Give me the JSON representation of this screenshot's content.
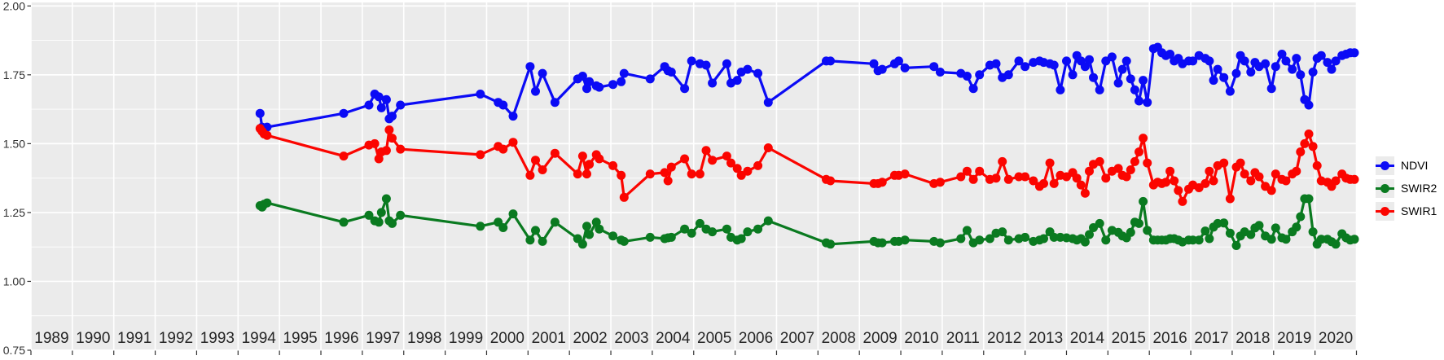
{
  "chart_data": {
    "type": "line",
    "title": "",
    "xlabel": "",
    "ylabel": "",
    "xlim": [
      1988.5,
      2020.5
    ],
    "ylim": [
      0.75,
      2.0
    ],
    "grid": "on",
    "legend_position": "right",
    "panel_bg": "#ebebeb",
    "grid_color": "#ffffff",
    "axis_text_color": "#303030",
    "y_ticks": [
      {
        "value": 2.0,
        "label": "2.00"
      },
      {
        "value": 1.75,
        "label": "1.75"
      },
      {
        "value": 1.5,
        "label": "1.50"
      },
      {
        "value": 1.25,
        "label": "1.25"
      },
      {
        "value": 1.0,
        "label": "1.00"
      },
      {
        "value": 0.75,
        "label": "0.75"
      }
    ],
    "y_minor_ticks": [
      1.875,
      1.625,
      1.375,
      1.125,
      0.875
    ],
    "x_tick_years": [
      1989,
      1990,
      1991,
      1992,
      1993,
      1994,
      1995,
      1996,
      1997,
      1998,
      1999,
      2000,
      2001,
      2002,
      2003,
      2004,
      2005,
      2006,
      2007,
      2008,
      2009,
      2010,
      2011,
      2012,
      2013,
      2014,
      2015,
      2016,
      2017,
      2018,
      2019,
      2020
    ],
    "x": [
      1994.03,
      1994.08,
      1994.13,
      1994.2,
      1996.05,
      1996.66,
      1996.8,
      1996.9,
      1996.96,
      1997.08,
      1997.15,
      1997.22,
      1997.42,
      1999.35,
      1999.78,
      1999.9,
      2000.14,
      2000.55,
      2000.68,
      2000.85,
      2001.15,
      2001.7,
      2001.82,
      2001.92,
      2001.98,
      2002.15,
      2002.22,
      2002.55,
      2002.75,
      2002.82,
      2003.45,
      2003.8,
      2003.88,
      2003.96,
      2004.28,
      2004.45,
      2004.65,
      2004.8,
      2004.95,
      2005.3,
      2005.4,
      2005.55,
      2005.65,
      2005.8,
      2006.05,
      2006.3,
      2007.7,
      2007.8,
      2008.85,
      2008.95,
      2009.05,
      2009.35,
      2009.45,
      2009.6,
      2010.3,
      2010.45,
      2010.95,
      2011.1,
      2011.25,
      2011.4,
      2011.65,
      2011.8,
      2011.95,
      2012.1,
      2012.35,
      2012.5,
      2012.7,
      2012.85,
      2012.95,
      2013.1,
      2013.2,
      2013.35,
      2013.5,
      2013.65,
      2013.75,
      2013.85,
      2013.95,
      2014.05,
      2014.15,
      2014.3,
      2014.45,
      2014.6,
      2014.75,
      2014.85,
      2014.95,
      2015.05,
      2015.15,
      2015.25,
      2015.35,
      2015.45,
      2015.6,
      2015.7,
      2015.8,
      2015.9,
      2016.0,
      2016.1,
      2016.2,
      2016.3,
      2016.45,
      2016.55,
      2016.7,
      2016.85,
      2016.95,
      2017.05,
      2017.15,
      2017.3,
      2017.45,
      2017.6,
      2017.7,
      2017.8,
      2017.95,
      2018.05,
      2018.15,
      2018.3,
      2018.45,
      2018.55,
      2018.7,
      2018.8,
      2018.95,
      2019.05,
      2019.15,
      2019.25,
      2019.35,
      2019.45,
      2019.55,
      2019.65,
      2019.8,
      2019.9,
      2020.0,
      2020.15,
      2020.25,
      2020.35,
      2020.45
    ],
    "series": [
      {
        "name": "NDVI",
        "color": "#0b0bf5",
        "values": [
          1.61,
          1.56,
          1.55,
          1.56,
          1.61,
          1.64,
          1.68,
          1.67,
          1.63,
          1.66,
          1.59,
          1.6,
          1.64,
          1.68,
          1.65,
          1.64,
          1.6,
          1.78,
          1.69,
          1.755,
          1.65,
          1.735,
          1.745,
          1.7,
          1.725,
          1.71,
          1.705,
          1.715,
          1.725,
          1.755,
          1.735,
          1.78,
          1.765,
          1.76,
          1.7,
          1.8,
          1.79,
          1.785,
          1.72,
          1.79,
          1.72,
          1.73,
          1.76,
          1.77,
          1.755,
          1.65,
          1.8,
          1.8,
          1.79,
          1.765,
          1.77,
          1.79,
          1.8,
          1.775,
          1.78,
          1.76,
          1.755,
          1.745,
          1.7,
          1.75,
          1.785,
          1.79,
          1.74,
          1.75,
          1.8,
          1.78,
          1.795,
          1.8,
          1.795,
          1.79,
          1.785,
          1.695,
          1.8,
          1.75,
          1.82,
          1.8,
          1.78,
          1.805,
          1.74,
          1.695,
          1.8,
          1.815,
          1.72,
          1.77,
          1.8,
          1.735,
          1.695,
          1.655,
          1.73,
          1.65,
          1.845,
          1.85,
          1.83,
          1.82,
          1.825,
          1.8,
          1.81,
          1.79,
          1.8,
          1.8,
          1.82,
          1.81,
          1.8,
          1.73,
          1.77,
          1.74,
          1.69,
          1.755,
          1.82,
          1.8,
          1.76,
          1.795,
          1.78,
          1.79,
          1.7,
          1.78,
          1.825,
          1.8,
          1.77,
          1.81,
          1.75,
          1.66,
          1.64,
          1.76,
          1.81,
          1.82,
          1.795,
          1.77,
          1.8,
          1.82,
          1.825,
          1.83,
          1.83
        ]
      },
      {
        "name": "SWIR2",
        "color": "#0a7a20",
        "values": [
          1.275,
          1.27,
          1.28,
          1.285,
          1.215,
          1.24,
          1.22,
          1.215,
          1.25,
          1.3,
          1.22,
          1.21,
          1.24,
          1.2,
          1.215,
          1.195,
          1.245,
          1.15,
          1.185,
          1.145,
          1.215,
          1.155,
          1.135,
          1.2,
          1.17,
          1.215,
          1.19,
          1.165,
          1.15,
          1.145,
          1.16,
          1.155,
          1.158,
          1.16,
          1.19,
          1.175,
          1.21,
          1.19,
          1.18,
          1.19,
          1.16,
          1.15,
          1.155,
          1.18,
          1.19,
          1.22,
          1.14,
          1.135,
          1.145,
          1.14,
          1.14,
          1.145,
          1.145,
          1.15,
          1.145,
          1.14,
          1.155,
          1.185,
          1.14,
          1.15,
          1.155,
          1.175,
          1.18,
          1.15,
          1.155,
          1.16,
          1.145,
          1.15,
          1.155,
          1.18,
          1.16,
          1.16,
          1.158,
          1.155,
          1.15,
          1.155,
          1.143,
          1.17,
          1.195,
          1.21,
          1.15,
          1.185,
          1.178,
          1.165,
          1.158,
          1.178,
          1.215,
          1.21,
          1.29,
          1.185,
          1.15,
          1.15,
          1.15,
          1.15,
          1.155,
          1.155,
          1.15,
          1.143,
          1.15,
          1.15,
          1.15,
          1.183,
          1.155,
          1.197,
          1.21,
          1.212,
          1.175,
          1.13,
          1.165,
          1.18,
          1.17,
          1.194,
          1.203,
          1.165,
          1.153,
          1.194,
          1.158,
          1.153,
          1.18,
          1.197,
          1.235,
          1.3,
          1.3,
          1.18,
          1.135,
          1.153,
          1.153,
          1.144,
          1.135,
          1.173,
          1.158,
          1.15,
          1.153
        ]
      },
      {
        "name": "SWIR1",
        "color": "#fb0500",
        "values": [
          1.555,
          1.545,
          1.535,
          1.53,
          1.455,
          1.495,
          1.5,
          1.445,
          1.47,
          1.475,
          1.55,
          1.52,
          1.48,
          1.46,
          1.49,
          1.48,
          1.505,
          1.385,
          1.44,
          1.405,
          1.465,
          1.39,
          1.455,
          1.39,
          1.425,
          1.46,
          1.445,
          1.42,
          1.385,
          1.305,
          1.39,
          1.395,
          1.365,
          1.415,
          1.445,
          1.39,
          1.39,
          1.475,
          1.44,
          1.455,
          1.43,
          1.41,
          1.385,
          1.4,
          1.42,
          1.485,
          1.37,
          1.365,
          1.355,
          1.355,
          1.36,
          1.385,
          1.385,
          1.39,
          1.355,
          1.36,
          1.38,
          1.4,
          1.37,
          1.4,
          1.37,
          1.375,
          1.435,
          1.37,
          1.38,
          1.38,
          1.365,
          1.345,
          1.355,
          1.43,
          1.355,
          1.385,
          1.38,
          1.395,
          1.375,
          1.35,
          1.32,
          1.4,
          1.425,
          1.435,
          1.375,
          1.4,
          1.41,
          1.385,
          1.38,
          1.405,
          1.435,
          1.47,
          1.52,
          1.43,
          1.35,
          1.36,
          1.355,
          1.36,
          1.4,
          1.365,
          1.33,
          1.29,
          1.335,
          1.35,
          1.34,
          1.355,
          1.4,
          1.365,
          1.42,
          1.43,
          1.3,
          1.415,
          1.43,
          1.39,
          1.365,
          1.395,
          1.38,
          1.345,
          1.33,
          1.39,
          1.37,
          1.365,
          1.39,
          1.4,
          1.47,
          1.5,
          1.535,
          1.49,
          1.42,
          1.365,
          1.36,
          1.345,
          1.365,
          1.39,
          1.375,
          1.37,
          1.37
        ]
      }
    ]
  },
  "legend": {
    "items": [
      {
        "label": "NDVI",
        "color": "#0b0bf5"
      },
      {
        "label": "SWIR2",
        "color": "#0a7a20"
      },
      {
        "label": "SWIR1",
        "color": "#fb0500"
      }
    ]
  }
}
